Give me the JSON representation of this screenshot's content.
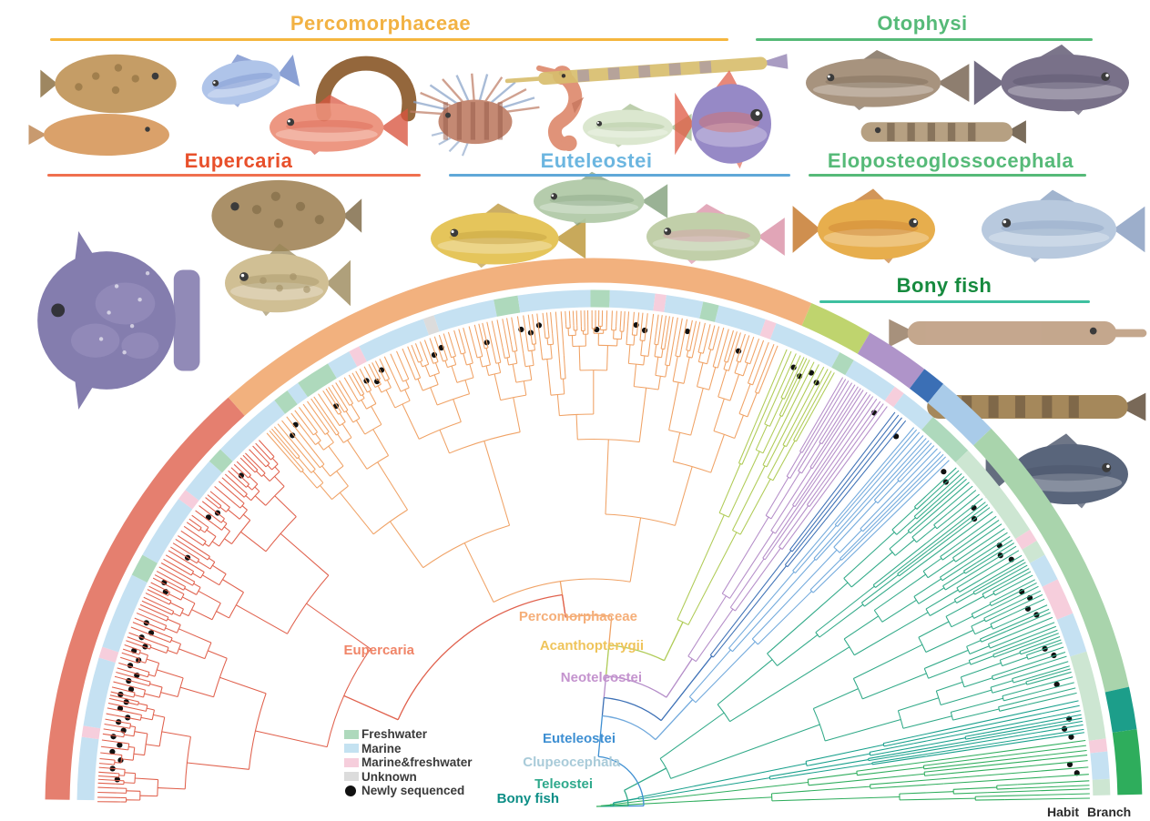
{
  "captions": {
    "habit": "Habit",
    "branch": "Branch"
  },
  "group_labels": [
    {
      "id": "percomorphaceae",
      "text": "Percomorphaceae",
      "color": "#F2B243",
      "line": "#F5B63E"
    },
    {
      "id": "otophysi",
      "text": "Otophysi",
      "color": "#56BA78",
      "line": "#56BA78"
    },
    {
      "id": "eupercaria",
      "text": "Eupercaria",
      "color": "#E8502B",
      "line": "#F0704E"
    },
    {
      "id": "euteleostei",
      "text": "Euteleostei",
      "color": "#6CB6E0",
      "line": "#5FA8D8"
    },
    {
      "id": "eloposteoglossocephala",
      "text": "Eloposteoglossocephala",
      "color": "#56BA78",
      "line": "#56BA78"
    },
    {
      "id": "bonyfish",
      "text": "Bony fish",
      "color": "#168A3E",
      "line": "#3EC0A0"
    }
  ],
  "tree_labels": [
    {
      "id": "eupercaria",
      "text": "Eupercaria",
      "color": "#F08568"
    },
    {
      "id": "percomorphaceae",
      "text": "Percomorphaceae",
      "color": "#F5AE78"
    },
    {
      "id": "acanthopterygii",
      "text": "Acanthopterygii",
      "color": "#EFC45B"
    },
    {
      "id": "neoteleostei",
      "text": "Neoteleostei",
      "color": "#C493CE"
    },
    {
      "id": "euteleostei",
      "text": "Euteleostei",
      "color": "#3E8FD2"
    },
    {
      "id": "clupeocephala",
      "text": "Clupeocephala",
      "color": "#A9CBD9"
    },
    {
      "id": "teleostei",
      "text": "Teleostei",
      "color": "#2FA98C"
    },
    {
      "id": "bonyfish",
      "text": "Bony fish",
      "color": "#0C8E86"
    }
  ],
  "legend": {
    "items": [
      {
        "label": "Freshwater",
        "color": "#AED9BC",
        "shape": "square"
      },
      {
        "label": "Marine",
        "color": "#C4E2F1",
        "shape": "square"
      },
      {
        "label": "Marine&freshwater",
        "color": "#F6CEDC",
        "shape": "square"
      },
      {
        "label": "Unknown",
        "color": "#DCDCDC",
        "shape": "square"
      },
      {
        "label": "Newly sequenced",
        "color": "#111111",
        "shape": "circle"
      }
    ]
  },
  "tree": {
    "clades": [
      {
        "id": "eupercaria",
        "color": "#E0604C",
        "t0": 0.002,
        "t1": 0.266,
        "root_radius": 300,
        "tips": 88,
        "seed": 11
      },
      {
        "id": "percomorphaceae",
        "color": "#F0A265",
        "t0": 0.27,
        "t1": 0.622,
        "root_radius": 250,
        "tips": 118,
        "seed": 22
      },
      {
        "id": "acanthopterygii",
        "color": "#AFCB55",
        "t0": 0.626,
        "t1": 0.662,
        "root_radius": 225,
        "tips": 13,
        "seed": 33
      },
      {
        "id": "neoteleostei",
        "color": "#B48CC8",
        "t0": 0.666,
        "t1": 0.703,
        "root_radius": 195,
        "tips": 14,
        "seed": 44
      },
      {
        "id": "stomiati",
        "color": "#3B6FB5",
        "t0": 0.706,
        "t1": 0.718,
        "root_radius": 210,
        "tips": 5,
        "seed": 55
      },
      {
        "id": "euteleostei",
        "color": "#6FA8DC",
        "t0": 0.722,
        "t1": 0.756,
        "root_radius": 160,
        "tips": 13,
        "seed": 66
      },
      {
        "id": "otocephala",
        "color": "#2FA987",
        "t0": 0.76,
        "t1": 0.928,
        "root_radius": 90,
        "tips": 58,
        "seed": 77
      },
      {
        "id": "teal-basal",
        "color": "#18A08C",
        "t0": 0.93,
        "t1": 0.953,
        "root_radius": 50,
        "tips": 9,
        "seed": 88
      },
      {
        "id": "basal-green",
        "color": "#2EAD5C",
        "t0": 0.956,
        "t1": 0.996,
        "root_radius": 18,
        "tips": 11,
        "seed": 99
      }
    ],
    "rings": {
      "branch": [
        [
          0.004,
          0.268,
          "#E57F6F"
        ],
        [
          0.268,
          0.63,
          "#F2B17E"
        ],
        [
          0.63,
          0.668,
          "#BFD46E"
        ],
        [
          0.668,
          0.706,
          "#AF94C9"
        ],
        [
          0.706,
          0.72,
          "#3B6FB5"
        ],
        [
          0.72,
          0.758,
          "#A9CBE9"
        ],
        [
          0.758,
          0.93,
          "#A9D4AC"
        ],
        [
          0.93,
          0.955,
          "#1C9E8A"
        ],
        [
          0.955,
          0.993,
          "#2EAD5C"
        ]
      ],
      "habit": [
        [
          0.004,
          0.043,
          "#C5E1F2"
        ],
        [
          0.043,
          0.05,
          "#F6CEDC"
        ],
        [
          0.05,
          0.093,
          "#C5E1F2"
        ],
        [
          0.093,
          0.1,
          "#F6CEDC"
        ],
        [
          0.1,
          0.148,
          "#C5E1F2"
        ],
        [
          0.148,
          0.162,
          "#AED9BC"
        ],
        [
          0.162,
          0.203,
          "#C5E1F2"
        ],
        [
          0.203,
          0.21,
          "#F6CEDC"
        ],
        [
          0.21,
          0.233,
          "#C5E1F2"
        ],
        [
          0.233,
          0.243,
          "#AED9BC"
        ],
        [
          0.243,
          0.288,
          "#C5E1F2"
        ],
        [
          0.288,
          0.298,
          "#AED9BC"
        ],
        [
          0.298,
          0.306,
          "#C5E1F2"
        ],
        [
          0.306,
          0.328,
          "#AED9BC"
        ],
        [
          0.328,
          0.343,
          "#C5E1F2"
        ],
        [
          0.343,
          0.35,
          "#F6CEDC"
        ],
        [
          0.35,
          0.393,
          "#C5E1F2"
        ],
        [
          0.393,
          0.4,
          "#DCDCDC"
        ],
        [
          0.4,
          0.438,
          "#C5E1F2"
        ],
        [
          0.438,
          0.453,
          "#AED9BC"
        ],
        [
          0.453,
          0.498,
          "#C5E1F2"
        ],
        [
          0.498,
          0.51,
          "#AED9BC"
        ],
        [
          0.51,
          0.538,
          "#C5E1F2"
        ],
        [
          0.538,
          0.545,
          "#F6CEDC"
        ],
        [
          0.545,
          0.568,
          "#C5E1F2"
        ],
        [
          0.568,
          0.578,
          "#AED9BC"
        ],
        [
          0.578,
          0.608,
          "#C5E1F2"
        ],
        [
          0.608,
          0.615,
          "#F6CEDC"
        ],
        [
          0.615,
          0.658,
          "#C5E1F2"
        ],
        [
          0.658,
          0.668,
          "#AED9BC"
        ],
        [
          0.668,
          0.698,
          "#C5E1F2"
        ],
        [
          0.698,
          0.705,
          "#F6CEDC"
        ],
        [
          0.705,
          0.728,
          "#C5E1F2"
        ],
        [
          0.728,
          0.758,
          "#AED9BC"
        ],
        [
          0.758,
          0.82,
          "#CDE6D2"
        ],
        [
          0.82,
          0.828,
          "#F6CEDC"
        ],
        [
          0.828,
          0.838,
          "#CDE6D2"
        ],
        [
          0.838,
          0.855,
          "#C5E1F2"
        ],
        [
          0.855,
          0.878,
          "#F6CEDC"
        ],
        [
          0.878,
          0.903,
          "#C5E1F2"
        ],
        [
          0.903,
          0.958,
          "#CDE6D2"
        ],
        [
          0.958,
          0.966,
          "#F6CEDC"
        ],
        [
          0.966,
          0.983,
          "#C5E1F2"
        ],
        [
          0.983,
          0.993,
          "#CDE6D2"
        ]
      ]
    },
    "newly_sequenced_dots": [
      [
        0.018,
        -4
      ],
      [
        0.025,
        2
      ],
      [
        0.031,
        -6
      ],
      [
        0.036,
        4
      ],
      [
        0.041,
        -3
      ],
      [
        0.046,
        5
      ],
      [
        0.051,
        -5
      ],
      [
        0.056,
        2
      ],
      [
        0.06,
        -7
      ],
      [
        0.065,
        3
      ],
      [
        0.07,
        -2
      ],
      [
        0.074,
        6
      ],
      [
        0.079,
        -4
      ],
      [
        0.084,
        1
      ],
      [
        0.089,
        -6
      ],
      [
        0.094,
        4
      ],
      [
        0.099,
        -3
      ],
      [
        0.104,
        5
      ],
      [
        0.109,
        -5
      ],
      [
        0.114,
        2
      ],
      [
        0.119,
        -6
      ],
      [
        0.124,
        3
      ],
      [
        0.148,
        -2
      ],
      [
        0.153,
        4
      ],
      [
        0.175,
        -5
      ],
      [
        0.205,
        1
      ],
      [
        0.211,
        -4
      ],
      [
        0.24,
        3
      ],
      [
        0.283,
        -3
      ],
      [
        0.289,
        4
      ],
      [
        0.318,
        -5
      ],
      [
        0.344,
        2
      ],
      [
        0.35,
        -4
      ],
      [
        0.356,
        5
      ],
      [
        0.392,
        -2
      ],
      [
        0.398,
        3
      ],
      [
        0.428,
        -5
      ],
      [
        0.452,
        2
      ],
      [
        0.458,
        -3
      ],
      [
        0.464,
        4
      ],
      [
        0.502,
        -4
      ],
      [
        0.528,
        3
      ],
      [
        0.534,
        -2
      ],
      [
        0.562,
        4
      ],
      [
        0.598,
        -3
      ],
      [
        0.636,
        2
      ],
      [
        0.642,
        -4
      ],
      [
        0.648,
        5
      ],
      [
        0.654,
        -2
      ],
      [
        0.697,
        3
      ],
      [
        0.718,
        -3
      ],
      [
        0.757,
        4
      ],
      [
        0.763,
        -2
      ],
      [
        0.788,
        3
      ],
      [
        0.794,
        -4
      ],
      [
        0.818,
        2
      ],
      [
        0.824,
        -3
      ],
      [
        0.83,
        5
      ],
      [
        0.852,
        -2
      ],
      [
        0.858,
        3
      ],
      [
        0.864,
        -4
      ],
      [
        0.87,
        2
      ],
      [
        0.893,
        -3
      ],
      [
        0.899,
        4
      ],
      [
        0.918,
        -2
      ],
      [
        0.942,
        3
      ],
      [
        0.948,
        -4
      ],
      [
        0.954,
        2
      ],
      [
        0.972,
        -3
      ],
      [
        0.978,
        4
      ]
    ]
  },
  "fish": [
    {
      "id": "flounder",
      "body": "#C1955A",
      "accent": "#7A5B28"
    },
    {
      "id": "ribbonfish",
      "body": "#A9BFE8",
      "accent": "#6A86C8"
    },
    {
      "id": "eel",
      "body": "#8B5A2B",
      "accent": "#6E4418"
    },
    {
      "id": "sole",
      "body": "#D79A5E",
      "accent": "#B4763B"
    },
    {
      "id": "alfonsino",
      "body": "#EC8F78",
      "accent": "#D85540"
    },
    {
      "id": "lionfish",
      "body": "#C08068",
      "accent": "#8AA4C8"
    },
    {
      "id": "seahorse",
      "body": "#DE8A6E",
      "accent": "#C06A50"
    },
    {
      "id": "pipefish",
      "body": "#D8BE6E",
      "accent": "#9080B0"
    },
    {
      "id": "medaka",
      "body": "#D8E6CC",
      "accent": "#A4BC8E"
    },
    {
      "id": "opah",
      "body": "#8E7FC2",
      "accent": "#E05E48"
    },
    {
      "id": "catfish-brown",
      "body": "#A08A74",
      "accent": "#6E5A46"
    },
    {
      "id": "catfish-dark",
      "body": "#6E6680",
      "accent": "#4C4460"
    },
    {
      "id": "loach",
      "body": "#B09878",
      "accent": "#55432E"
    },
    {
      "id": "monkfish",
      "body": "#A3875C",
      "accent": "#6E5630"
    },
    {
      "id": "pufferfish",
      "body": "#CDBA8C",
      "accent": "#998656"
    },
    {
      "id": "ocean-sunfish",
      "body": "#7A72A8",
      "accent": "#9A92C0"
    },
    {
      "id": "golden-trout",
      "body": "#E3C14E",
      "accent": "#B8902E"
    },
    {
      "id": "green-trout",
      "body": "#AFC8A5",
      "accent": "#7E9C78"
    },
    {
      "id": "rainbow-trout",
      "body": "#BCCBA2",
      "accent": "#D88CA2"
    },
    {
      "id": "killifish",
      "body": "#E6A83E",
      "accent": "#C2701E"
    },
    {
      "id": "tarpon",
      "body": "#B2C5DC",
      "accent": "#8098BC"
    },
    {
      "id": "gar",
      "body": "#C0A084",
      "accent": "#8E7258"
    },
    {
      "id": "bichir",
      "body": "#9E7E4E",
      "accent": "#54402A"
    },
    {
      "id": "coelacanth",
      "body": "#4C5870",
      "accent": "#39455C"
    }
  ]
}
